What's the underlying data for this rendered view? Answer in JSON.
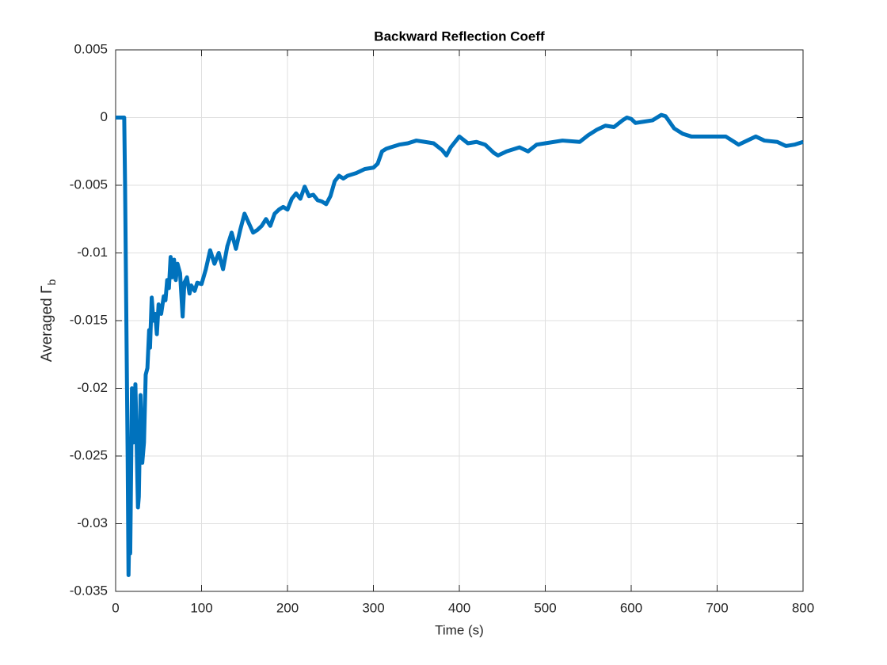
{
  "chart_data": {
    "type": "line",
    "title": "Backward Reflection Coeff",
    "xlabel": "Time (s)",
    "ylabel": "Averaged Γ",
    "ylabel_subscript": "b",
    "x": [
      0,
      10,
      11,
      14,
      15,
      16,
      17,
      19,
      21,
      23,
      26,
      27,
      29,
      31,
      33,
      35,
      37,
      39,
      40,
      42,
      44,
      46,
      48,
      50,
      53,
      56,
      58,
      60,
      62,
      64,
      66,
      68,
      70,
      72,
      75,
      78,
      80,
      83,
      86,
      88,
      92,
      95,
      100,
      105,
      110,
      115,
      120,
      125,
      130,
      135,
      140,
      145,
      150,
      155,
      160,
      165,
      170,
      175,
      180,
      185,
      190,
      195,
      200,
      205,
      210,
      215,
      220,
      225,
      230,
      235,
      240,
      245,
      250,
      255,
      260,
      265,
      270,
      280,
      290,
      300,
      305,
      310,
      315,
      320,
      330,
      340,
      350,
      360,
      370,
      380,
      385,
      390,
      400,
      410,
      420,
      430,
      440,
      445,
      455,
      470,
      480,
      490,
      500,
      520,
      540,
      550,
      560,
      570,
      580,
      590,
      595,
      600,
      605,
      615,
      625,
      635,
      640,
      650,
      660,
      670,
      680,
      700,
      710,
      720,
      725,
      735,
      745,
      755,
      770,
      780,
      790,
      800
    ],
    "series": [
      {
        "name": "Averaged Γb",
        "color": "#0072bd",
        "values": [
          0,
          0,
          -0.005,
          -0.025,
          -0.0338,
          -0.03,
          -0.0322,
          -0.02,
          -0.024,
          -0.0197,
          -0.0288,
          -0.028,
          -0.0205,
          -0.0255,
          -0.024,
          -0.019,
          -0.0185,
          -0.0157,
          -0.017,
          -0.0133,
          -0.015,
          -0.0145,
          -0.016,
          -0.0138,
          -0.0145,
          -0.0132,
          -0.0135,
          -0.012,
          -0.0126,
          -0.0103,
          -0.0118,
          -0.0105,
          -0.012,
          -0.0108,
          -0.0115,
          -0.0147,
          -0.0122,
          -0.0118,
          -0.013,
          -0.0124,
          -0.0128,
          -0.0122,
          -0.0123,
          -0.0112,
          -0.0098,
          -0.0108,
          -0.01,
          -0.0112,
          -0.0095,
          -0.0085,
          -0.0097,
          -0.0083,
          -0.0071,
          -0.0078,
          -0.0085,
          -0.0083,
          -0.008,
          -0.0075,
          -0.008,
          -0.0071,
          -0.0068,
          -0.0066,
          -0.0068,
          -0.006,
          -0.0056,
          -0.006,
          -0.0051,
          -0.0058,
          -0.0057,
          -0.0061,
          -0.0062,
          -0.0064,
          -0.0058,
          -0.0047,
          -0.0043,
          -0.0045,
          -0.0043,
          -0.0041,
          -0.0038,
          -0.0037,
          -0.0034,
          -0.0025,
          -0.0023,
          -0.0022,
          -0.002,
          -0.0019,
          -0.0017,
          -0.0018,
          -0.0019,
          -0.0024,
          -0.0028,
          -0.0022,
          -0.0014,
          -0.0019,
          -0.0018,
          -0.002,
          -0.0026,
          -0.0028,
          -0.0025,
          -0.0022,
          -0.0025,
          -0.002,
          -0.0019,
          -0.0017,
          -0.0018,
          -0.0013,
          -0.0009,
          -0.0006,
          -0.0007,
          -0.0002,
          0,
          -0.0001,
          -0.0004,
          -0.0003,
          -0.0002,
          0.0002,
          0.0001,
          -0.0008,
          -0.0012,
          -0.0014,
          -0.0014,
          -0.0014,
          -0.0014,
          -0.0018,
          -0.002,
          -0.0017,
          -0.0014,
          -0.0017,
          -0.0018,
          -0.0021,
          -0.002,
          -0.0018
        ]
      }
    ],
    "xlim": [
      0,
      800
    ],
    "xticks": [
      0,
      100,
      200,
      300,
      400,
      500,
      600,
      700,
      800
    ],
    "ylim": [
      -0.035,
      0.005
    ],
    "yticks": [
      0.005,
      0,
      -0.005,
      -0.01,
      -0.015,
      -0.02,
      -0.025,
      -0.03,
      -0.035
    ],
    "grid": true
  }
}
